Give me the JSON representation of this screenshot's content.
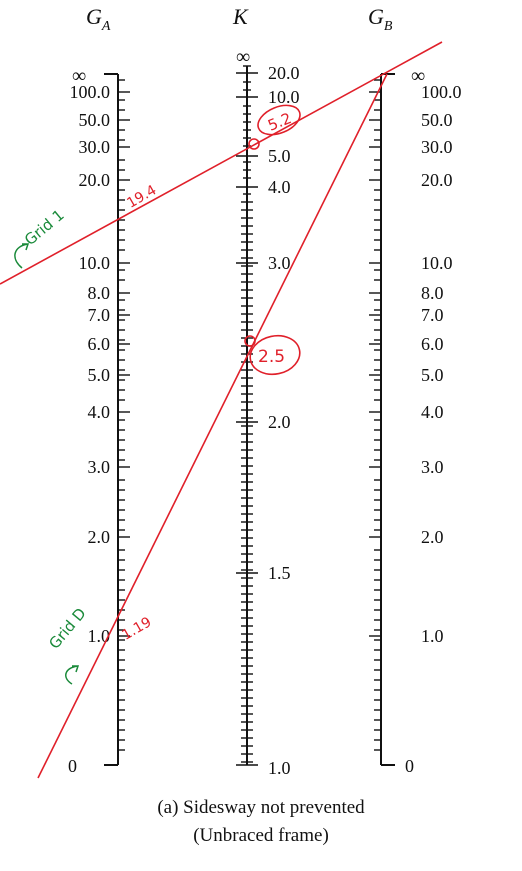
{
  "headers": {
    "ga": {
      "main": "G",
      "sub": "A"
    },
    "k": {
      "main": "K"
    },
    "gb": {
      "main": "G",
      "sub": "B"
    }
  },
  "infinity_symbol": "∞",
  "ga_labels": [
    "100.0",
    "50.0",
    "30.0",
    "20.0",
    "10.0",
    "8.0",
    "7.0",
    "6.0",
    "5.0",
    "4.0",
    "3.0",
    "2.0",
    "1.0",
    "0"
  ],
  "k_labels": [
    "20.0",
    "10.0",
    "5.0",
    "4.0",
    "3.0",
    "2.0",
    "1.5",
    "1.0"
  ],
  "gb_labels": [
    "100.0",
    "50.0",
    "30.0",
    "20.0",
    "10.0",
    "8.0",
    "7.0",
    "6.0",
    "5.0",
    "4.0",
    "3.0",
    "2.0",
    "1.0",
    "0"
  ],
  "caption": {
    "line1": "(a) Sidesway not prevented",
    "line2": "(Unbraced frame)"
  },
  "annotations": {
    "grid_1": "Grid 1",
    "grid_d": "Grid D",
    "value_19_4": "19.4",
    "value_1_19": "1.19",
    "k_upper": "5.2",
    "k_lower": "2.5"
  },
  "colors": {
    "ink": "#111111",
    "red_markup": "#e0202a",
    "green_markup": "#1a8a3a"
  }
}
